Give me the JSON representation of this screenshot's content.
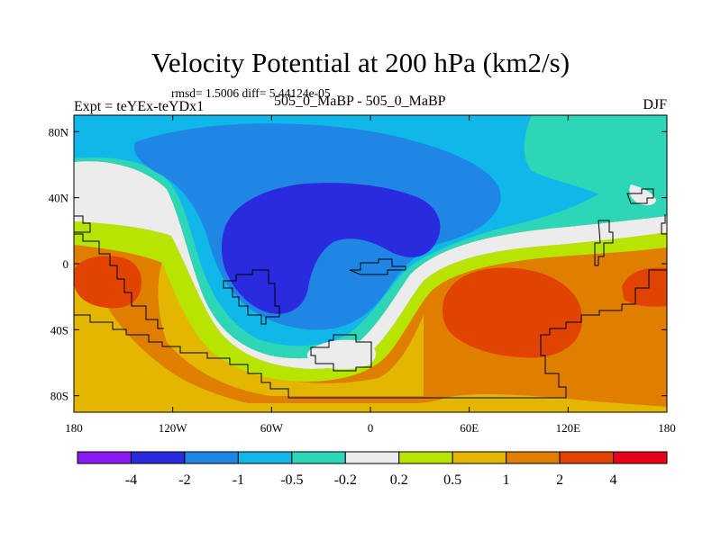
{
  "chart_data": {
    "type": "heatmap",
    "title": "Velocity Potential at 200 hPa (km2/s)",
    "stats_text": "rmsd= 1.5006  diff= 5.44124e-05",
    "left_label": "Expt = teYEx-teYDx1",
    "center_label": "505_0_MaBP - 505_0_MaBP",
    "right_label": "DJF",
    "x_ticks": [
      {
        "value": -180,
        "label": "180"
      },
      {
        "value": -120,
        "label": "120W"
      },
      {
        "value": -60,
        "label": "60W"
      },
      {
        "value": 0,
        "label": "0"
      },
      {
        "value": 60,
        "label": "60E"
      },
      {
        "value": 120,
        "label": "120E"
      },
      {
        "value": 180,
        "label": "180"
      }
    ],
    "y_ticks": [
      {
        "value": 80,
        "label": "80N"
      },
      {
        "value": 40,
        "label": "40N"
      },
      {
        "value": 0,
        "label": "0"
      },
      {
        "value": -40,
        "label": "40S"
      },
      {
        "value": -80,
        "label": "80S"
      }
    ],
    "xlim": [
      -180,
      180
    ],
    "ylim": [
      -90,
      90
    ],
    "colorbar": {
      "colors": [
        "#8a1cf0",
        "#2a2adf",
        "#1f86e6",
        "#0fb8e8",
        "#2ed6b8",
        "#ececec",
        "#b7e400",
        "#e3b600",
        "#e07e00",
        "#e04400",
        "#e8001a"
      ],
      "levels": [
        "-4",
        "-2",
        "-1",
        "-0.5",
        "-0.2",
        "0.2",
        "0.5",
        "1",
        "2",
        "4"
      ]
    },
    "field_description": "Negative values (upper-level divergence) centered over tropical South America/Atlantic around 40W,20N; positive values (convergence) over Indian Ocean/Africa around 60E,30S and the eastern Pacific around 160W,10S."
  }
}
